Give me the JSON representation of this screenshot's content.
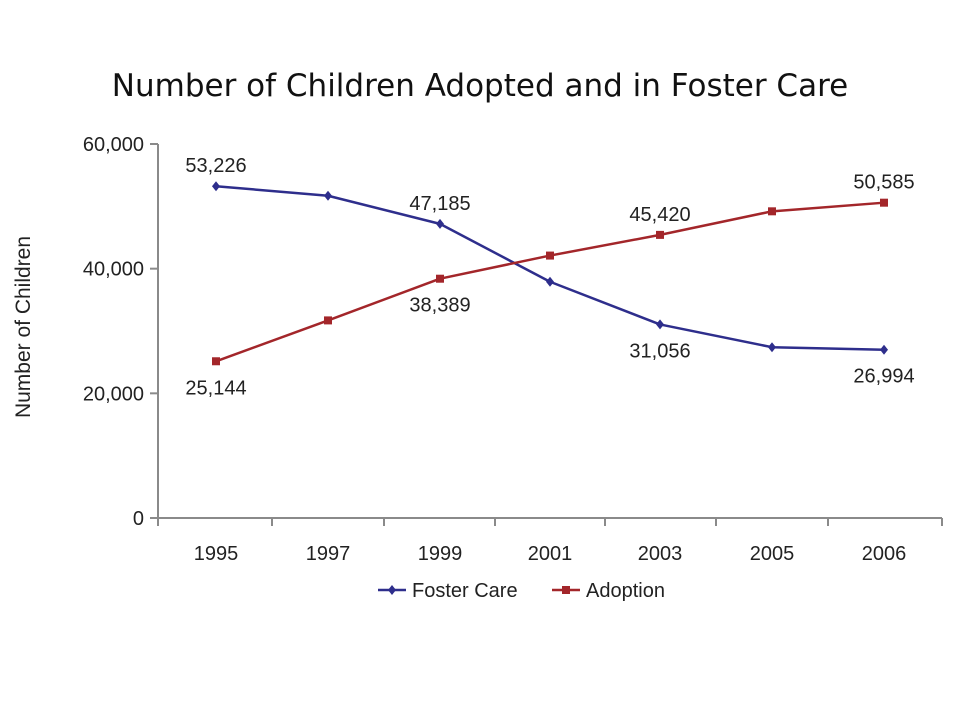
{
  "chart_data": {
    "type": "line",
    "title": "Number of Children Adopted and in Foster Care",
    "xlabel": "",
    "ylabel": "Number of Children",
    "categories": [
      "1995",
      "1997",
      "1999",
      "2001",
      "2003",
      "2005",
      "2006"
    ],
    "ylim": [
      0,
      60000
    ],
    "yticks": [
      0,
      20000,
      40000,
      60000
    ],
    "ytick_labels": [
      "0",
      "20,000",
      "40,000",
      "60,000"
    ],
    "grid": false,
    "legend_position": "bottom",
    "series": [
      {
        "name": "Foster Care",
        "color": "#2e2e8c",
        "marker": "diamond",
        "values": [
          53226,
          51700,
          47185,
          37900,
          31056,
          27400,
          26994
        ]
      },
      {
        "name": "Adoption",
        "color": "#a3262a",
        "marker": "square",
        "values": [
          25144,
          31700,
          38389,
          42100,
          45420,
          49200,
          50585
        ]
      }
    ],
    "data_labels": [
      {
        "series": 0,
        "index": 0,
        "text": "53,226",
        "placement": "above"
      },
      {
        "series": 0,
        "index": 2,
        "text": "47,185",
        "placement": "above"
      },
      {
        "series": 0,
        "index": 4,
        "text": "31,056",
        "placement": "below"
      },
      {
        "series": 0,
        "index": 6,
        "text": "26,994",
        "placement": "below"
      },
      {
        "series": 1,
        "index": 0,
        "text": "25,144",
        "placement": "below"
      },
      {
        "series": 1,
        "index": 2,
        "text": "38,389",
        "placement": "below"
      },
      {
        "series": 1,
        "index": 4,
        "text": "45,420",
        "placement": "above"
      },
      {
        "series": 1,
        "index": 6,
        "text": "50,585",
        "placement": "above"
      }
    ]
  }
}
